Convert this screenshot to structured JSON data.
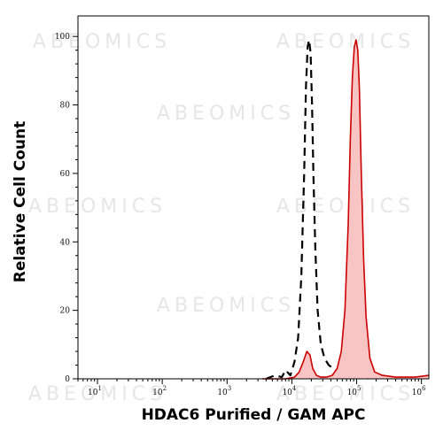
{
  "watermark": "ABEOMICS",
  "chart_data": {
    "type": "area",
    "xlabel": "HDAC6 Purified / GAM APC",
    "ylabel": "Relative Cell Count",
    "x_scale": "log",
    "xlim": [
      5,
      1300000
    ],
    "ylim": [
      0,
      106
    ],
    "y_ticks": [
      0,
      20,
      40,
      60,
      80,
      100
    ],
    "y_tick_labels": [
      "0",
      "20",
      "40",
      "60",
      "80",
      "100"
    ],
    "x_ticks": [
      {
        "base": "10",
        "exp": "1",
        "value": 10
      },
      {
        "base": "10",
        "exp": "2",
        "value": 100
      },
      {
        "base": "10",
        "exp": "3",
        "value": 1000
      },
      {
        "base": "10",
        "exp": "4",
        "value": 10000
      },
      {
        "base": "10",
        "exp": "5",
        "value": 100000
      },
      {
        "base": "10",
        "exp": "6",
        "value": 1000000
      }
    ],
    "grid": false,
    "colors": {
      "filled_line": "#cc0000",
      "filled_area": "#f8c4c4",
      "dashed_line": "#000000"
    },
    "series": [
      {
        "style": "dashed",
        "x": [
          4000,
          5500,
          7000,
          8000,
          9500,
          11000,
          12500,
          14000,
          15500,
          16500,
          17500,
          18500,
          19500,
          20500,
          21500,
          23000,
          25000,
          28000,
          32000,
          37000,
          44000,
          55000,
          70000,
          90000,
          120000,
          160000
        ],
        "y": [
          0,
          1,
          0.5,
          2.5,
          1,
          5,
          12,
          30,
          60,
          85,
          97,
          99,
          95,
          80,
          60,
          38,
          20,
          10,
          6,
          4,
          3,
          2,
          2,
          1,
          0.5,
          0
        ]
      },
      {
        "style": "filled",
        "x": [
          3500,
          8000,
          11000,
          13000,
          15000,
          17000,
          19000,
          21000,
          24000,
          28000,
          34000,
          42000,
          50000,
          58000,
          66000,
          74000,
          80000,
          86000,
          92000,
          98000,
          104000,
          110000,
          118000,
          128000,
          140000,
          160000,
          190000,
          250000,
          400000,
          800000,
          1300000
        ],
        "y": [
          0,
          0,
          0.5,
          2,
          5,
          8,
          7,
          3,
          1,
          0.5,
          0.5,
          1,
          3,
          8,
          20,
          45,
          70,
          88,
          97,
          99,
          96,
          85,
          60,
          35,
          18,
          6,
          2,
          1,
          0.5,
          0.5,
          1
        ]
      }
    ]
  }
}
